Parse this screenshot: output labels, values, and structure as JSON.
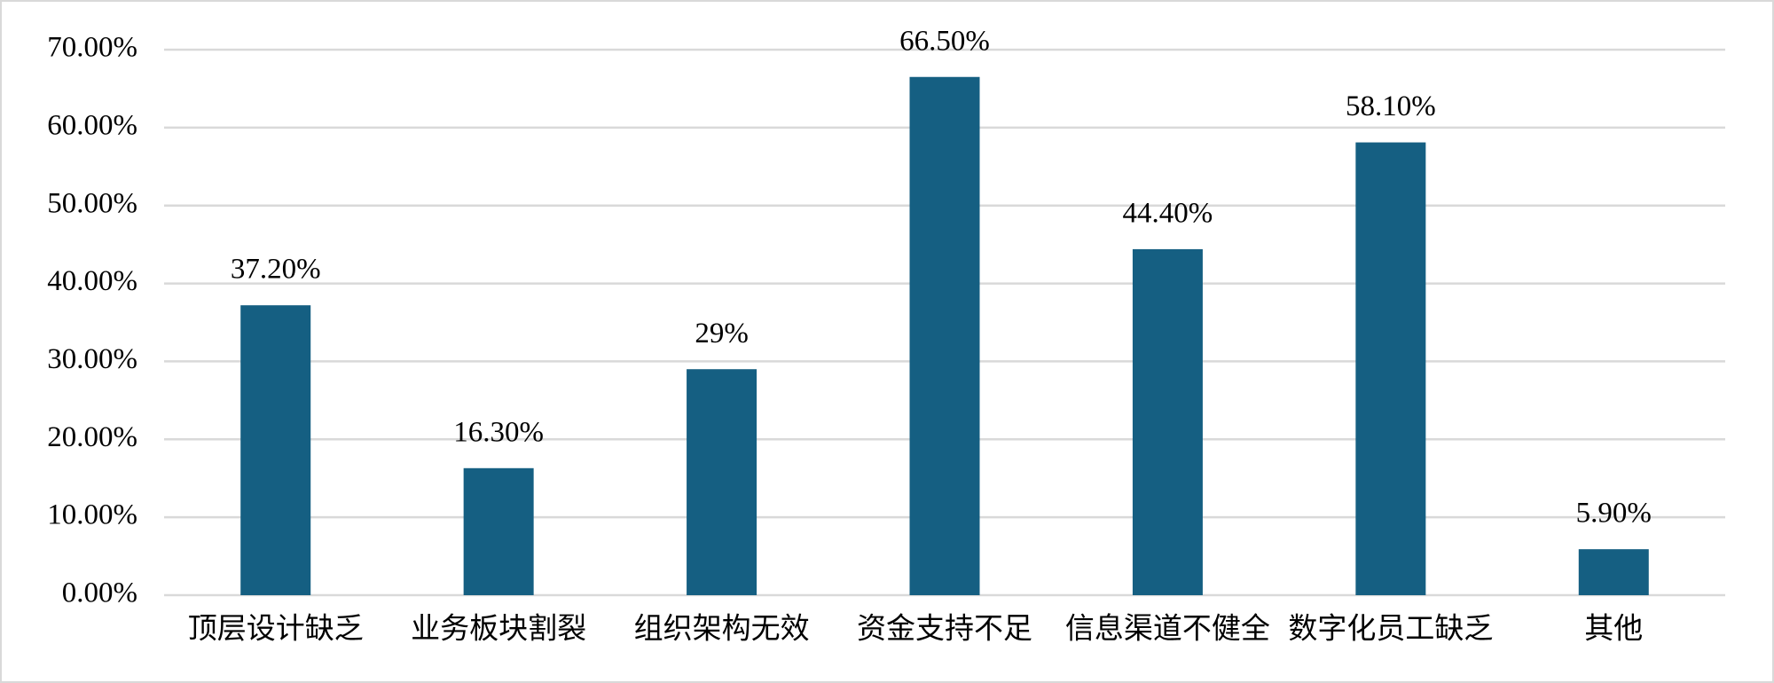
{
  "chart_data": {
    "type": "bar",
    "categories": [
      "顶层设计缺乏",
      "业务板块割裂",
      "组织架构无效",
      "资金支持不足",
      "信息渠道不健全",
      "数字化员工缺乏",
      "其他"
    ],
    "values": [
      37.2,
      16.3,
      29,
      66.5,
      44.4,
      58.1,
      5.9
    ],
    "value_labels": [
      "37.20%",
      "16.30%",
      "29%",
      "66.50%",
      "44.40%",
      "58.10%",
      "5.90%"
    ],
    "color": "#155f82",
    "ylim": [
      0,
      70
    ],
    "yticks": [
      {
        "value": 0,
        "label": "0.00%"
      },
      {
        "value": 10,
        "label": "10.00%"
      },
      {
        "value": 20,
        "label": "20.00%"
      },
      {
        "value": 30,
        "label": "30.00%"
      },
      {
        "value": 40,
        "label": "40.00%"
      },
      {
        "value": 50,
        "label": "50.00%"
      },
      {
        "value": 60,
        "label": "60.00%"
      },
      {
        "value": 70,
        "label": "70.00%"
      }
    ],
    "grid": true
  }
}
